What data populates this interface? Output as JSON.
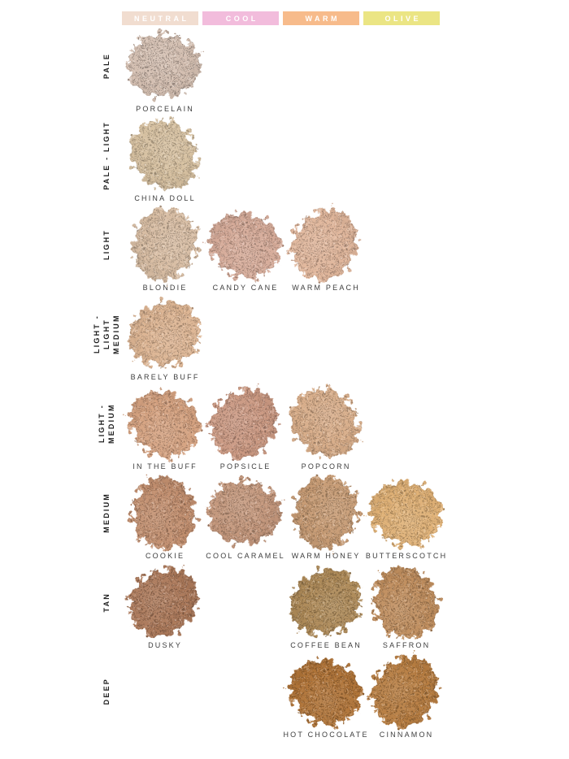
{
  "page": {
    "background": "#ffffff",
    "text_color": "#3d3d3d"
  },
  "columns": [
    {
      "label": "NEUTRAL",
      "color": "#f1ddd0"
    },
    {
      "label": "COOL",
      "color": "#f2bcdc"
    },
    {
      "label": "WARM",
      "color": "#f7bb8b"
    },
    {
      "label": "OLIVE",
      "color": "#ebe584"
    }
  ],
  "rows": [
    {
      "label": "PALE",
      "shades": [
        {
          "col": 0,
          "name": "PORCELAIN",
          "color": "#d3beb0"
        }
      ]
    },
    {
      "label": "PALE - LIGHT",
      "shades": [
        {
          "col": 0,
          "name": "CHINA DOLL",
          "color": "#d6c0a0"
        }
      ]
    },
    {
      "label": "LIGHT",
      "shades": [
        {
          "col": 0,
          "name": "BLONDIE",
          "color": "#d8bda3"
        },
        {
          "col": 1,
          "name": "CANDY CANE",
          "color": "#d6ab99"
        },
        {
          "col": 2,
          "name": "WARM PEACH",
          "color": "#e0b69b"
        }
      ]
    },
    {
      "label": "LIGHT -\nLIGHT MEDIUM",
      "shades": [
        {
          "col": 0,
          "name": "BARELY BUFF",
          "color": "#ddb593"
        }
      ]
    },
    {
      "label": "LIGHT - MEDIUM",
      "shades": [
        {
          "col": 0,
          "name": "IN THE BUFF",
          "color": "#d5a280"
        },
        {
          "col": 1,
          "name": "POPSICLE",
          "color": "#cb9982"
        },
        {
          "col": 2,
          "name": "POPCORN",
          "color": "#d8ad89"
        }
      ]
    },
    {
      "label": "MEDIUM",
      "shades": [
        {
          "col": 0,
          "name": "COOKIE",
          "color": "#c28f6f"
        },
        {
          "col": 1,
          "name": "COOL CARAMEL",
          "color": "#c4977c"
        },
        {
          "col": 2,
          "name": "WARM HONEY",
          "color": "#c79b74"
        },
        {
          "col": 3,
          "name": "BUTTERSCOTCH",
          "color": "#dfb075"
        }
      ]
    },
    {
      "label": "TAN",
      "shades": [
        {
          "col": 0,
          "name": "DUSKY",
          "color": "#ac795a"
        },
        {
          "col": 2,
          "name": "COFFEE BEAN",
          "color": "#ae8a58"
        },
        {
          "col": 3,
          "name": "SAFFRON",
          "color": "#c08e5e"
        }
      ]
    },
    {
      "label": "DEEP",
      "shades": [
        {
          "col": 2,
          "name": "HOT CHOCOLATE",
          "color": "#b07438"
        },
        {
          "col": 3,
          "name": "CINNAMON",
          "color": "#b77d41"
        }
      ]
    }
  ]
}
